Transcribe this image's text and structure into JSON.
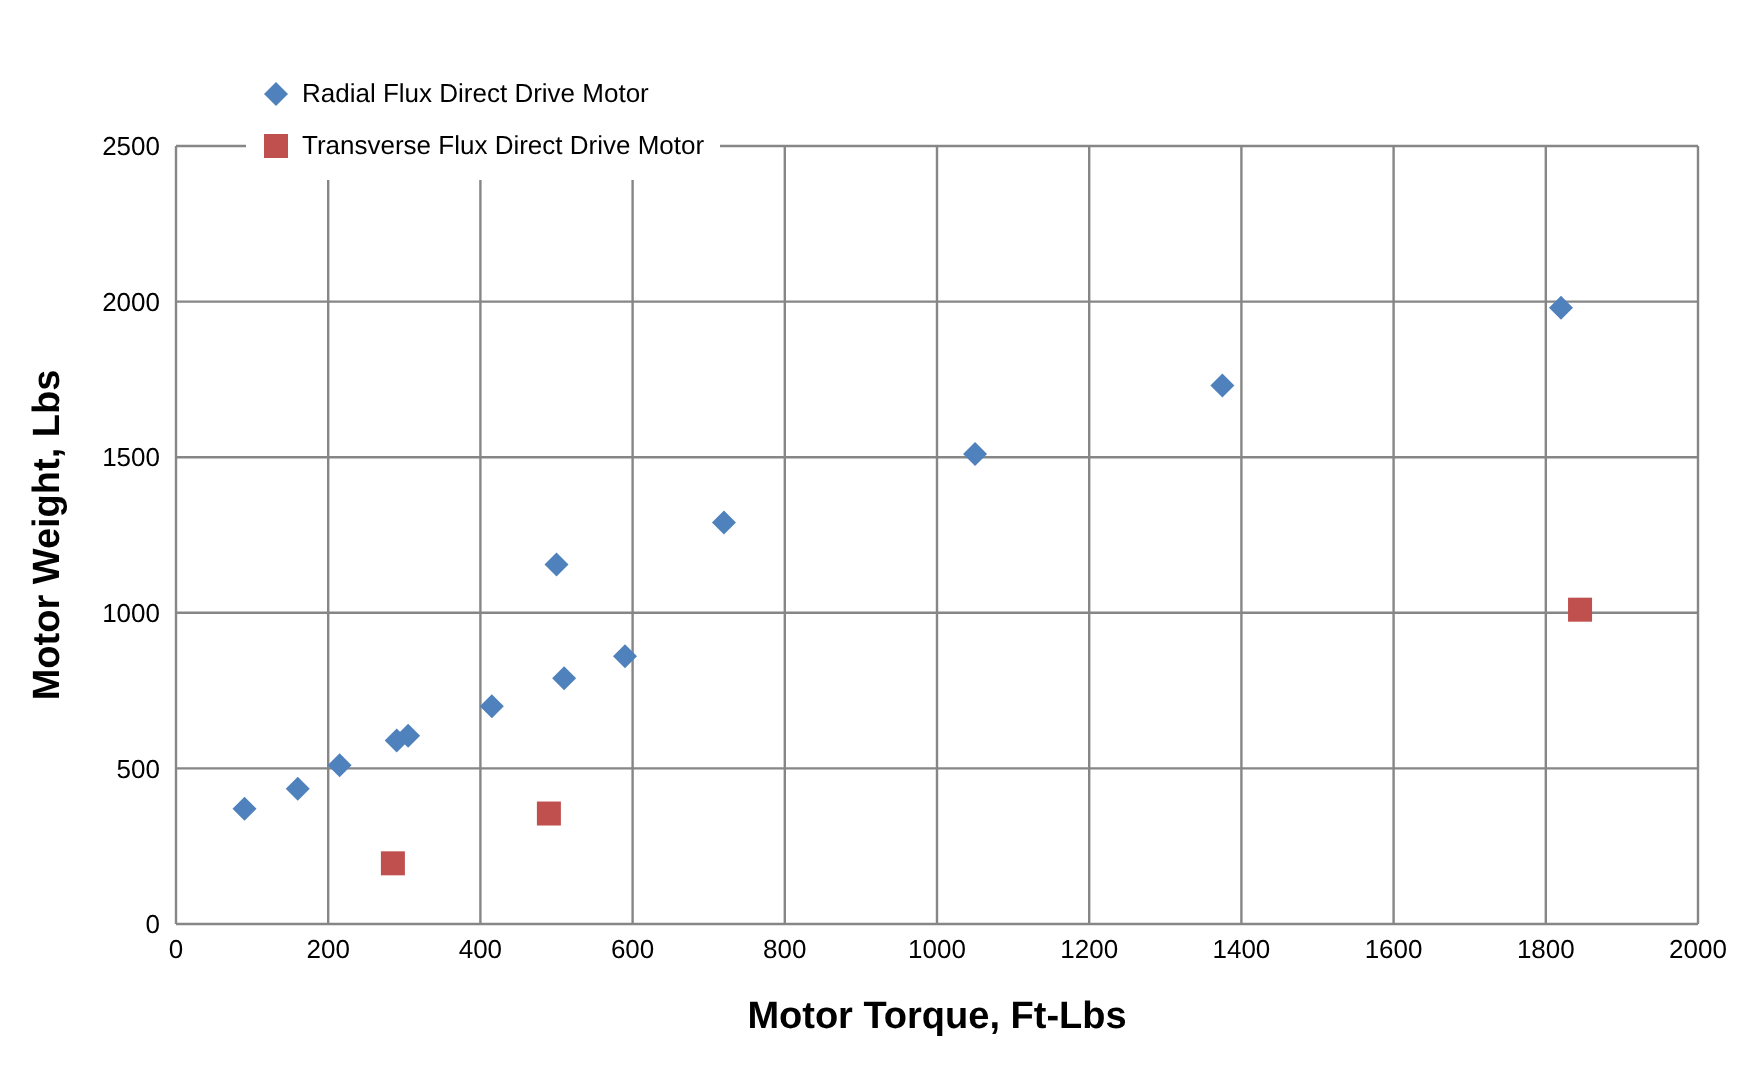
{
  "chart_data": {
    "type": "scatter",
    "xlabel": "Motor Torque, Ft-Lbs",
    "ylabel": "Motor Weight, Lbs",
    "xlim": [
      0,
      2000
    ],
    "xticks": [
      0,
      200,
      400,
      600,
      800,
      1000,
      1200,
      1400,
      1600,
      1800,
      2000
    ],
    "ylim": [
      0,
      2500
    ],
    "yticks": [
      0,
      500,
      1000,
      1500,
      2000,
      2500
    ],
    "grid": true,
    "legend": "top left",
    "series": [
      {
        "name": "Radial Flux Direct Drive Motor",
        "color": "#4f81bd",
        "marker": "diamond",
        "x": [
          90,
          160,
          215,
          290,
          305,
          415,
          500,
          510,
          590,
          720,
          1050,
          1375,
          1820
        ],
        "values": [
          370,
          435,
          510,
          590,
          605,
          700,
          1155,
          790,
          860,
          1290,
          1510,
          1730,
          1980
        ]
      },
      {
        "name": "Transverse Flux Direct Drive Motor",
        "color": "#c0504d",
        "marker": "square",
        "x": [
          285,
          490,
          1845
        ],
        "values": [
          195,
          355,
          1010
        ]
      }
    ]
  }
}
